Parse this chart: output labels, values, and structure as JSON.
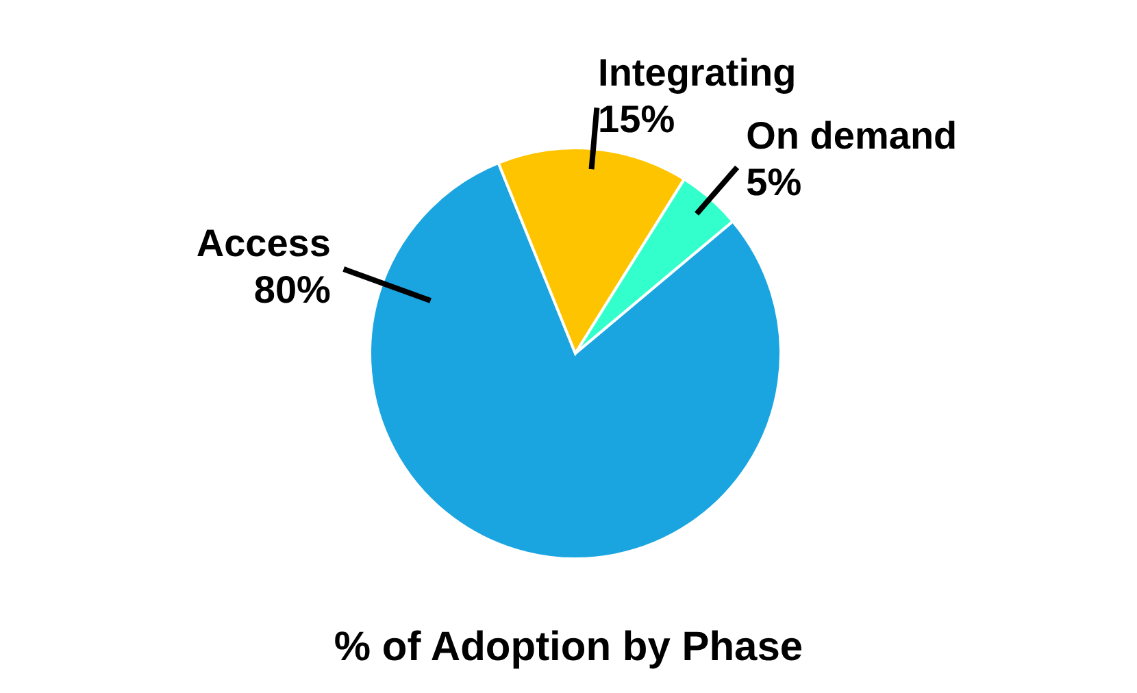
{
  "chart_data": {
    "type": "pie",
    "title": "% of Adoption by Phase",
    "categories": [
      "Access",
      "Integrating",
      "On demand"
    ],
    "values": [
      80,
      15,
      5
    ],
    "value_labels": [
      "80%",
      "15%",
      "5%"
    ],
    "colors": [
      "#1ba5e0",
      "#ffc400",
      "#33ffcc"
    ],
    "legend": false
  }
}
